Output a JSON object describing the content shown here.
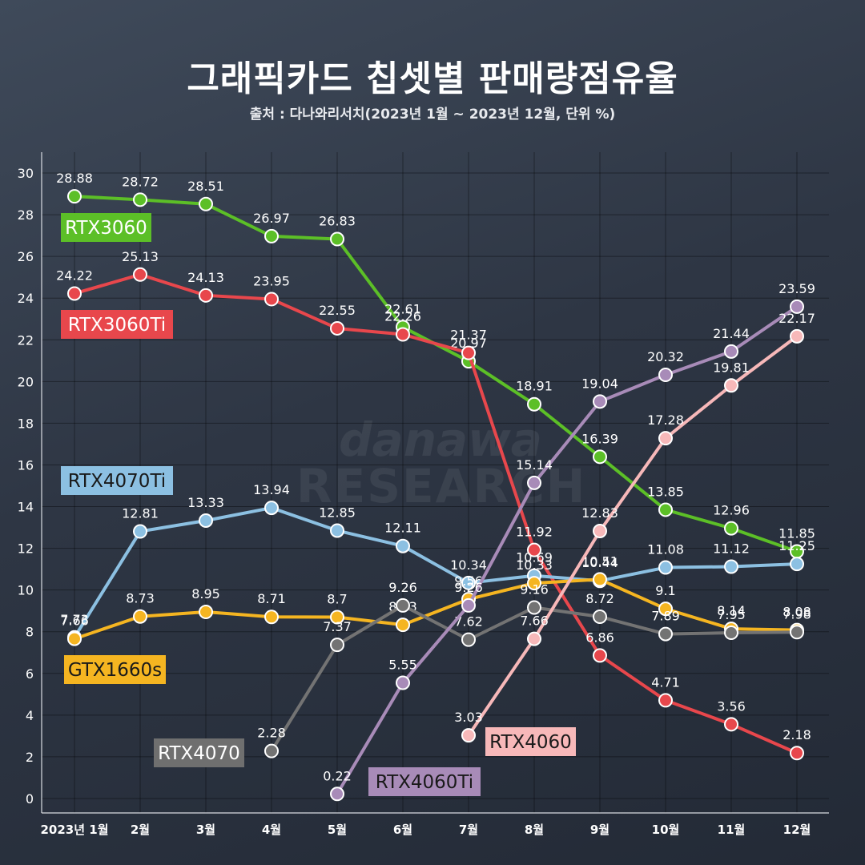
{
  "title": "그래픽카드 칩셋별 판매량점유율",
  "subtitle": "출처 : 다나와리서치(2023년 1월 ~ 2023년 12월, 단위 %)",
  "watermark": {
    "line1": "danawa",
    "line2": "RESEARCH"
  },
  "chart_data": {
    "type": "line",
    "title": "그래픽카드 칩셋별 판매량점유율",
    "subtitle": "출처 : 다나와리서치(2023년 1월 ~ 2023년 12월, 단위 %)",
    "categories": [
      "2023년 1월",
      "2월",
      "3월",
      "4월",
      "5월",
      "6월",
      "7월",
      "8월",
      "9월",
      "10월",
      "11월",
      "12월"
    ],
    "ylim": [
      0,
      30
    ],
    "yticks": [
      0,
      2,
      4,
      6,
      8,
      10,
      12,
      14,
      16,
      18,
      20,
      22,
      24,
      26,
      28,
      30
    ],
    "grid": true,
    "series": [
      {
        "name": "RTX3060",
        "color": "#5cbf27",
        "values": [
          28.88,
          28.72,
          28.51,
          26.97,
          26.83,
          22.61,
          20.97,
          18.91,
          16.39,
          13.85,
          12.96,
          11.85
        ]
      },
      {
        "name": "RTX3060Ti",
        "color": "#e8474c",
        "values": [
          24.22,
          25.13,
          24.13,
          23.95,
          22.55,
          22.26,
          21.37,
          11.92,
          6.86,
          4.71,
          3.56,
          2.18
        ]
      },
      {
        "name": "RTX4070Ti",
        "color": "#8cc0e2",
        "values": [
          7.73,
          12.81,
          13.33,
          13.94,
          12.85,
          12.11,
          10.34,
          10.69,
          10.44,
          11.08,
          11.12,
          11.25
        ]
      },
      {
        "name": "GTX1660s",
        "color": "#f5b521",
        "values": [
          7.66,
          8.73,
          8.95,
          8.71,
          8.7,
          8.33,
          9.56,
          10.33,
          10.51,
          9.1,
          8.14,
          8.08
        ]
      },
      {
        "name": "RTX4070",
        "color": "#737373",
        "values": [
          null,
          null,
          null,
          2.28,
          7.37,
          9.26,
          7.62,
          9.16,
          8.72,
          7.89,
          7.95,
          7.98
        ]
      },
      {
        "name": "RTX4060Ti",
        "color": "#a88bb8",
        "values": [
          null,
          null,
          null,
          null,
          0.22,
          5.55,
          9.26,
          15.14,
          19.04,
          20.32,
          21.44,
          23.59
        ]
      },
      {
        "name": "RTX4060",
        "color": "#f7b8b9",
        "values": [
          null,
          null,
          null,
          null,
          null,
          null,
          3.03,
          7.66,
          12.83,
          17.28,
          19.81,
          22.17
        ]
      }
    ],
    "series_labels": [
      {
        "name": "RTX3060",
        "bg": "#5cbf27",
        "fg": "#ffffff"
      },
      {
        "name": "RTX3060Ti",
        "bg": "#e8474c",
        "fg": "#ffffff"
      },
      {
        "name": "RTX4070Ti",
        "bg": "#8cc0e2",
        "fg": "#1a1a1a"
      },
      {
        "name": "GTX1660s",
        "bg": "#f5b521",
        "fg": "#1a1a1a"
      },
      {
        "name": "RTX4070",
        "bg": "#6f6f6f",
        "fg": "#ffffff"
      },
      {
        "name": "RTX4060Ti",
        "bg": "#a88bb8",
        "fg": "#1a1a1a"
      },
      {
        "name": "RTX4060",
        "bg": "#f7b8b9",
        "fg": "#1a1a1a"
      }
    ]
  }
}
